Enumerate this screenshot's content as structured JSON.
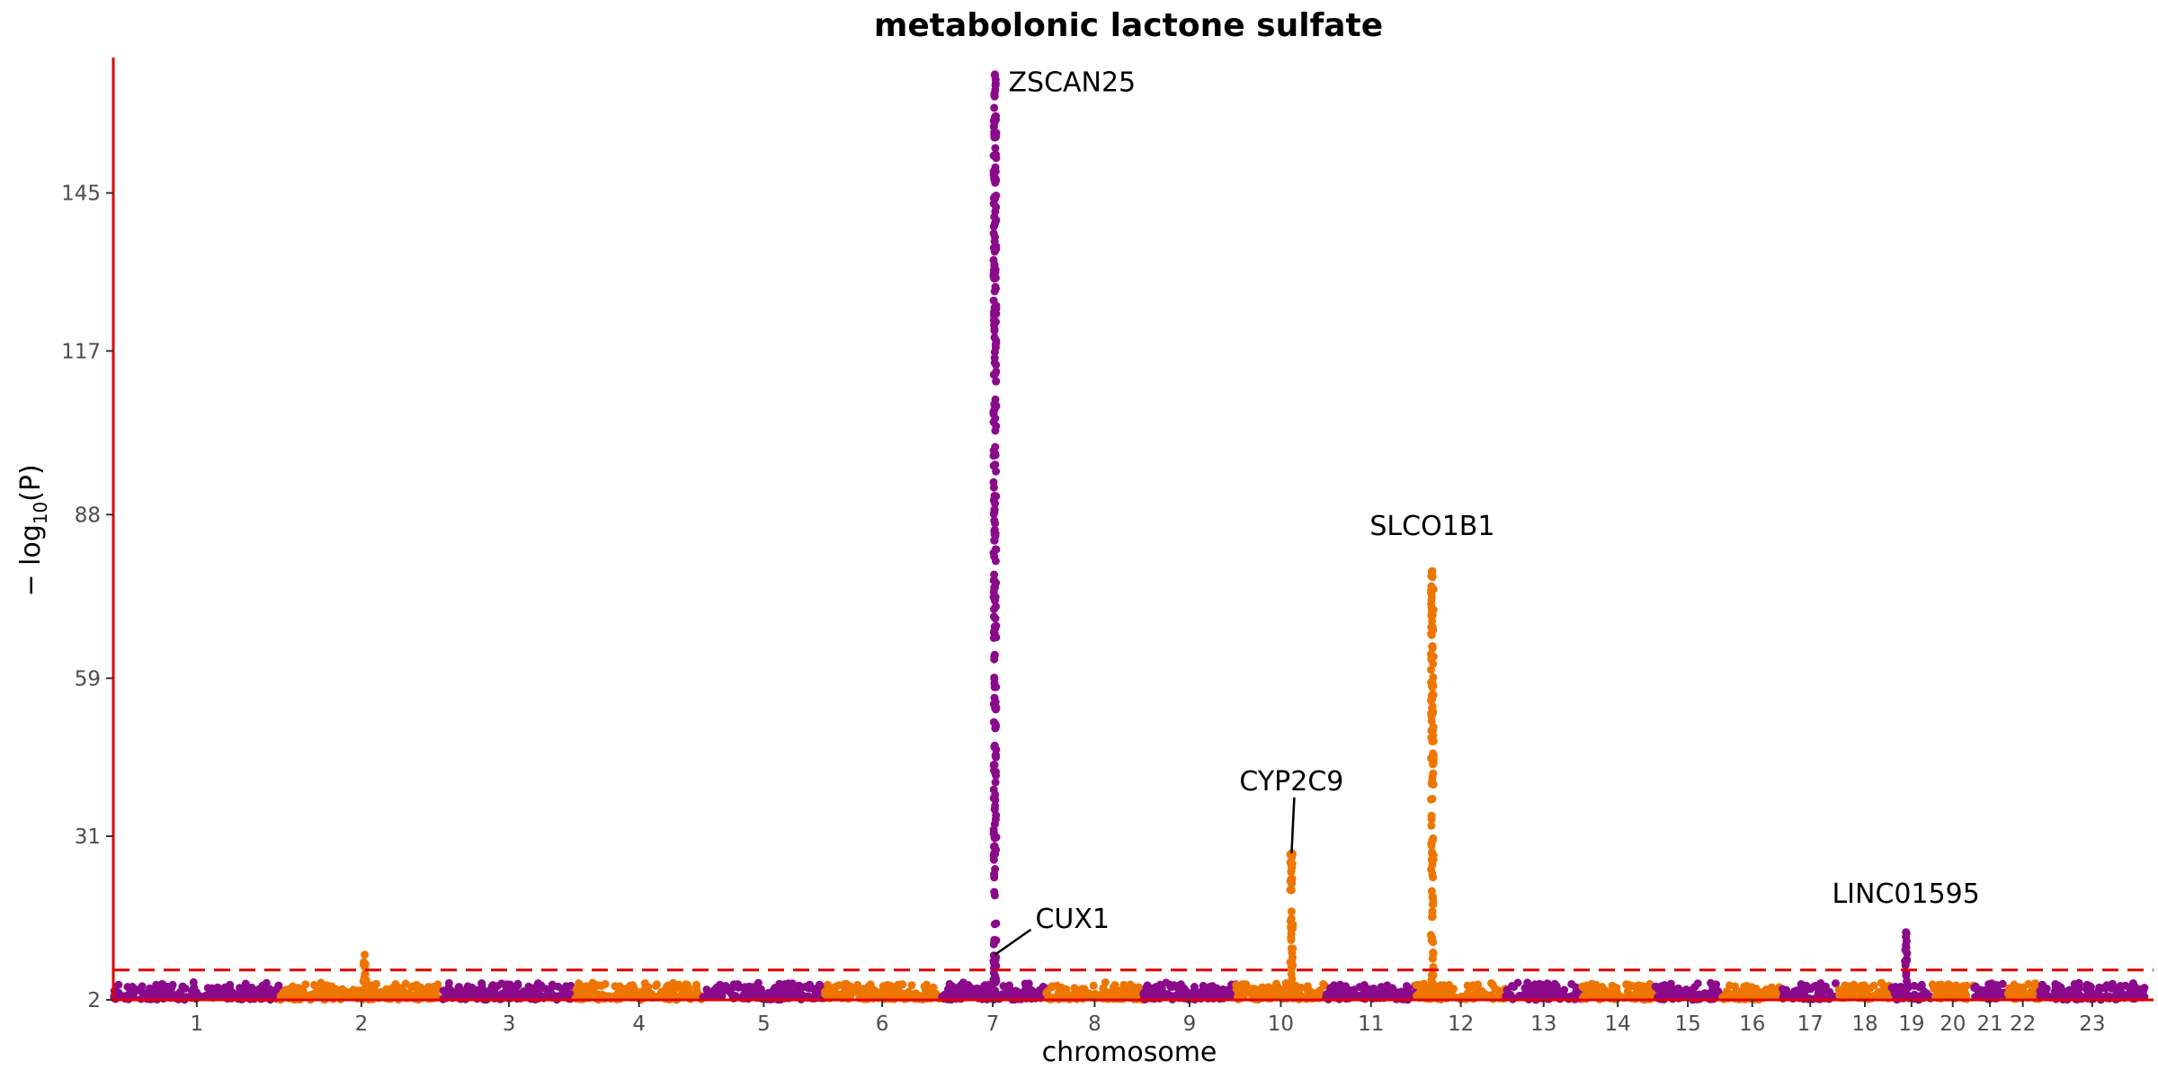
{
  "chart_data": {
    "type": "scatter",
    "title": "metabolonic lactone sulfate",
    "xlabel": "chromosome",
    "ylabel": "−log10(P)",
    "ylabel_main": "− log",
    "ylabel_sub": "10",
    "ylabel_tail": "(P)",
    "ylim": [
      2,
      169
    ],
    "yticks": [
      2,
      31,
      59,
      88,
      117,
      145
    ],
    "grid": false,
    "threshold": 7.3,
    "colors": {
      "odd": "#8B0A8B",
      "even": "#EE7600",
      "threshold": "#E00000",
      "axis": "#E00000"
    },
    "chromosomes": [
      {
        "label": "1",
        "length": 249
      },
      {
        "label": "2",
        "length": 242
      },
      {
        "label": "3",
        "length": 198
      },
      {
        "label": "4",
        "length": 190
      },
      {
        "label": "5",
        "length": 182
      },
      {
        "label": "6",
        "length": 171
      },
      {
        "label": "7",
        "length": 159
      },
      {
        "label": "8",
        "length": 145
      },
      {
        "label": "9",
        "length": 138
      },
      {
        "label": "10",
        "length": 134
      },
      {
        "label": "11",
        "length": 135
      },
      {
        "label": "12",
        "length": 133
      },
      {
        "label": "13",
        "length": 114
      },
      {
        "label": "14",
        "length": 107
      },
      {
        "label": "15",
        "length": 102
      },
      {
        "label": "16",
        "length": 90
      },
      {
        "label": "17",
        "length": 83
      },
      {
        "label": "18",
        "length": 80
      },
      {
        "label": "19",
        "length": 59
      },
      {
        "label": "20",
        "length": 64
      },
      {
        "label": "21",
        "length": 47
      },
      {
        "label": "22",
        "length": 51
      },
      {
        "label": "23",
        "length": 156
      }
    ],
    "peaks": [
      {
        "chrom": "2",
        "pos_frac": 0.52,
        "max_y": 10
      },
      {
        "chrom": "7",
        "pos_frac": 0.52,
        "max_y": 166
      },
      {
        "chrom": "10",
        "pos_frac": 0.62,
        "max_y": 28
      },
      {
        "chrom": "12",
        "pos_frac": 0.18,
        "max_y": 78
      },
      {
        "chrom": "19",
        "pos_frac": 0.36,
        "max_y": 14
      }
    ],
    "annotations": [
      {
        "text": "ZSCAN25",
        "chrom": "7",
        "y": 163
      },
      {
        "text": "CUX1",
        "chrom": "7",
        "y": 19
      },
      {
        "text": "CYP2C9",
        "chrom": "10",
        "y": 41
      },
      {
        "text": "SLCO1B1",
        "chrom": "12",
        "y": 82
      },
      {
        "text": "LINC01595",
        "chrom": "19",
        "y": 16
      }
    ]
  }
}
